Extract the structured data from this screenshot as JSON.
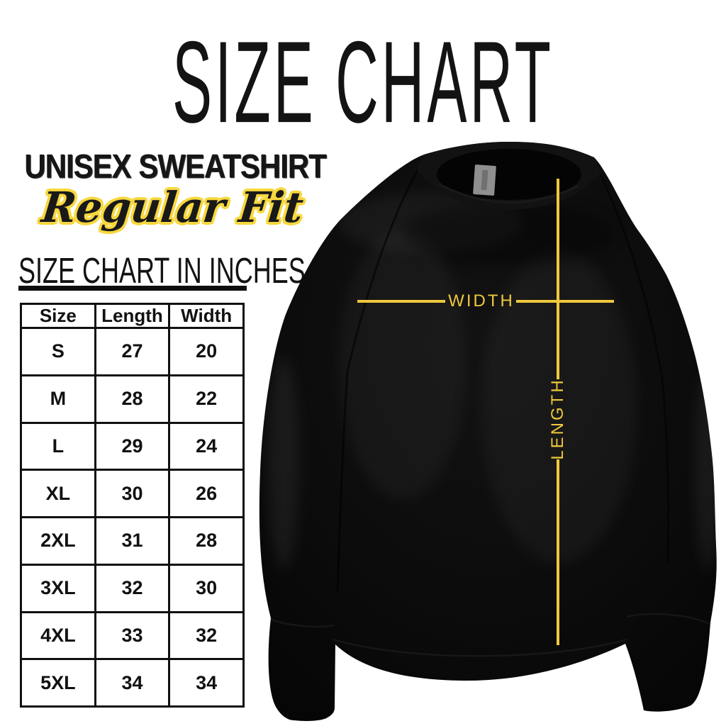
{
  "header": {
    "title": "SIZE CHART"
  },
  "product": {
    "name": "UNISEX SWEATSHIRT",
    "fit": "Regular Fit"
  },
  "table_section": {
    "heading": "SIZE CHART IN INCHES"
  },
  "size_table": {
    "columns": [
      "Size",
      "Length",
      "Width"
    ],
    "rows": [
      [
        "S",
        "27",
        "20"
      ],
      [
        "M",
        "28",
        "22"
      ],
      [
        "L",
        "29",
        "24"
      ],
      [
        "XL",
        "30",
        "26"
      ],
      [
        "2XL",
        "31",
        "28"
      ],
      [
        "3XL",
        "32",
        "30"
      ],
      [
        "4XL",
        "33",
        "32"
      ],
      [
        "5XL",
        "34",
        "34"
      ]
    ]
  },
  "measurements": {
    "width_label": "WIDTH",
    "length_label": "LENGTH"
  },
  "colors": {
    "accent_yellow": "#EFC83C",
    "script_outline_yellow": "#F7D73E",
    "ink": "#131313",
    "sweatshirt_black": "#0B0B0B",
    "collar_tag_gray": "#8F8F8F",
    "background": "#FFFFFF"
  }
}
